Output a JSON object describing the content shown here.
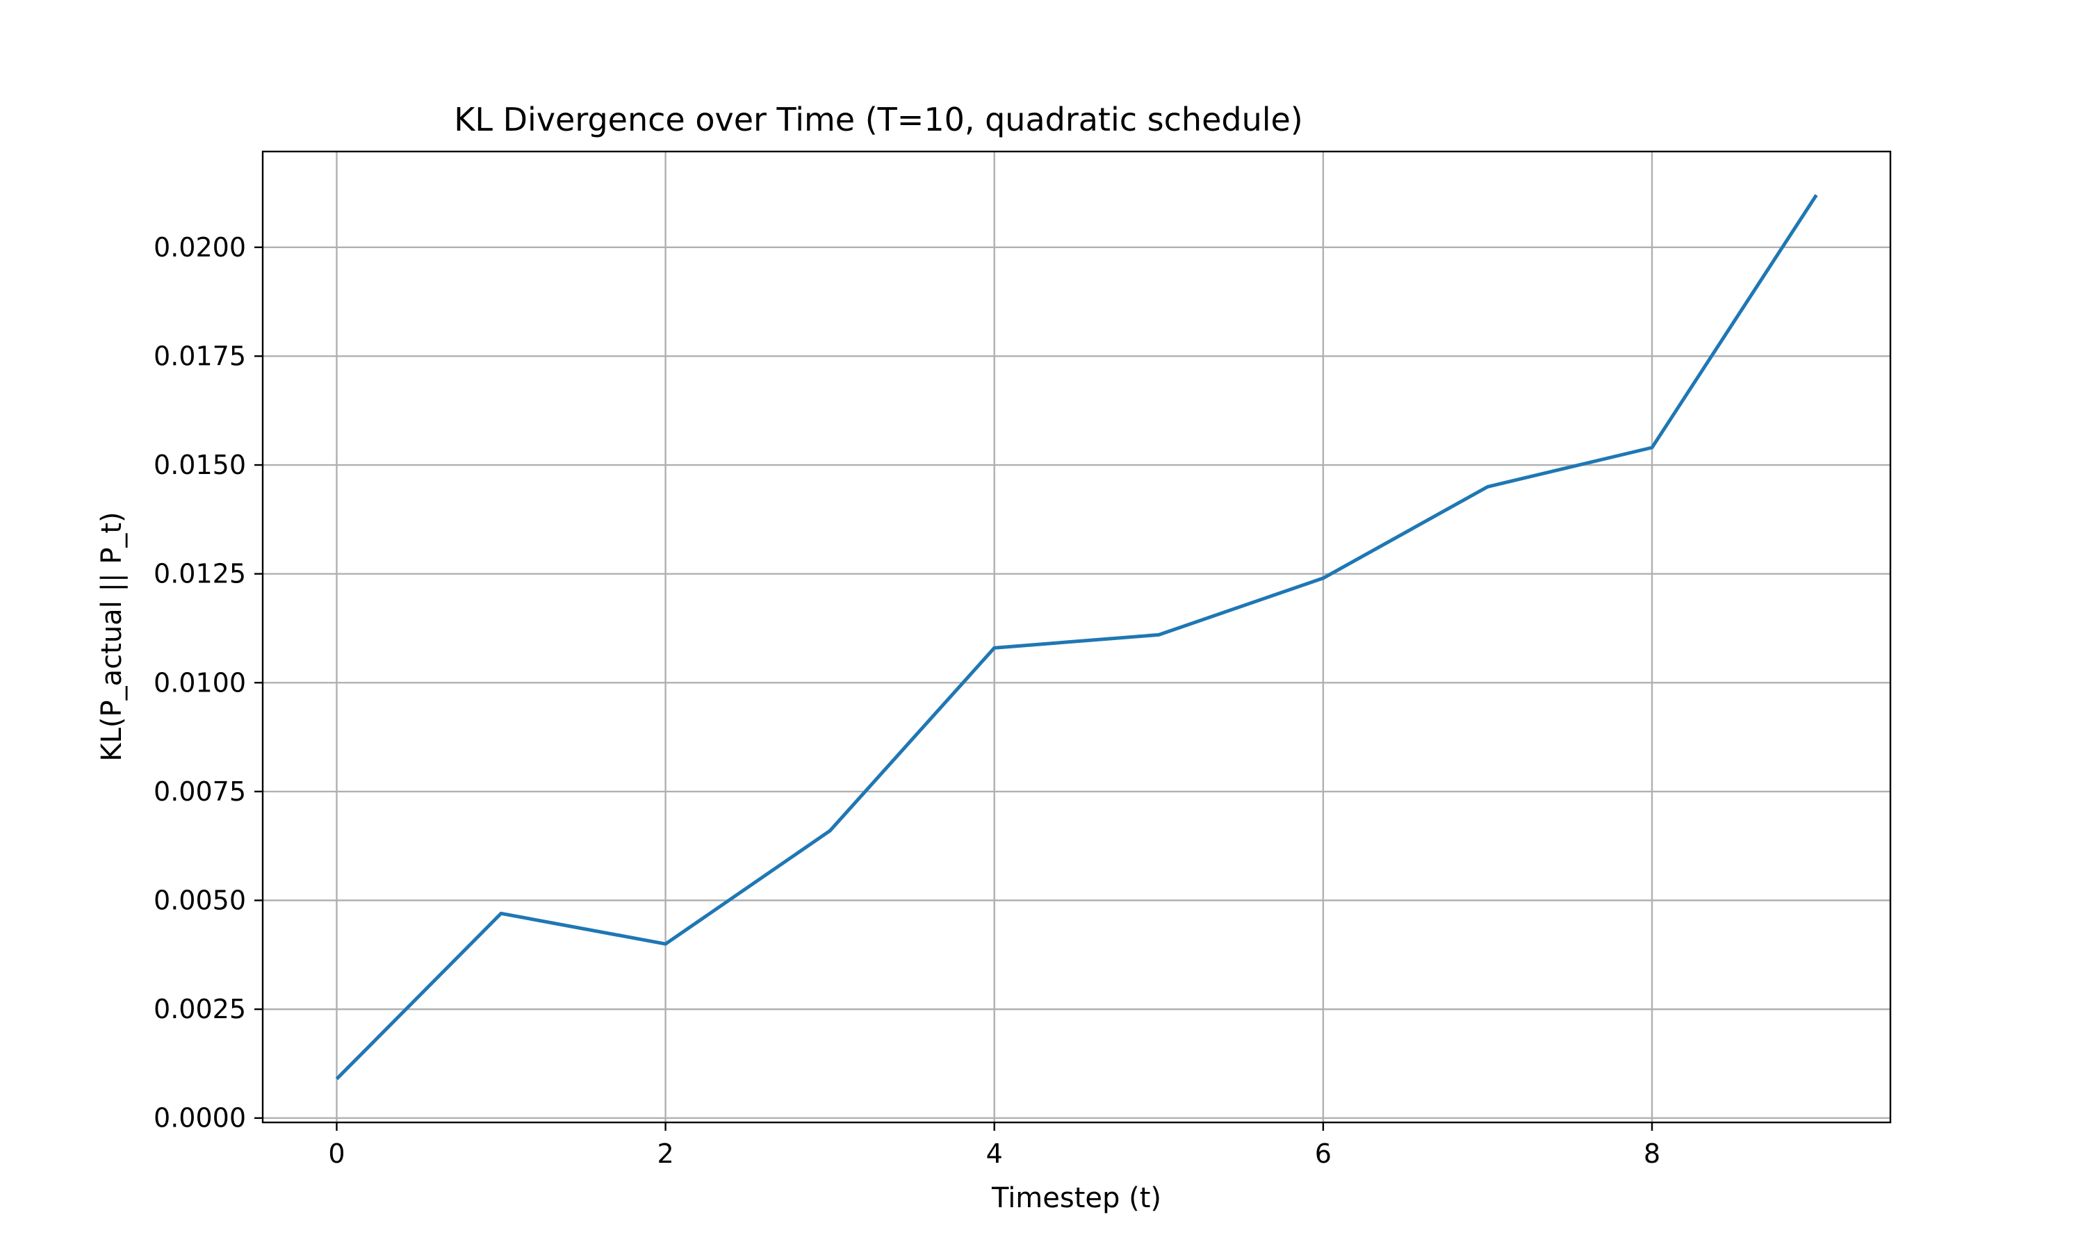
{
  "chart_data": {
    "type": "line",
    "title": "KL Divergence over Time (T=10, quadratic schedule)",
    "xlabel": "Timestep (t)",
    "ylabel": "KL(P_actual || P_t)",
    "x": [
      0,
      1,
      2,
      3,
      4,
      5,
      6,
      7,
      8,
      9
    ],
    "series": [
      {
        "values": [
          0.0009,
          0.0047,
          0.004,
          0.0066,
          0.0108,
          0.0111,
          0.0124,
          0.0145,
          0.0154,
          0.0212
        ],
        "color": "#1f77b4"
      }
    ],
    "xlim": [
      -0.45,
      9.45
    ],
    "ylim": [
      -0.0001,
      0.0222
    ],
    "xticks": [
      0,
      2,
      4,
      6,
      8
    ],
    "xtick_labels": [
      "0",
      "2",
      "4",
      "6",
      "8"
    ],
    "yticks": [
      0,
      0.0025,
      0.005,
      0.0075,
      0.01,
      0.0125,
      0.015,
      0.0175,
      0.02
    ],
    "ytick_labels": [
      "0.0000",
      "0.0025",
      "0.0050",
      "0.0075",
      "0.0100",
      "0.0125",
      "0.0150",
      "0.0175",
      "0.0200"
    ],
    "grid": true,
    "legend": "none"
  }
}
